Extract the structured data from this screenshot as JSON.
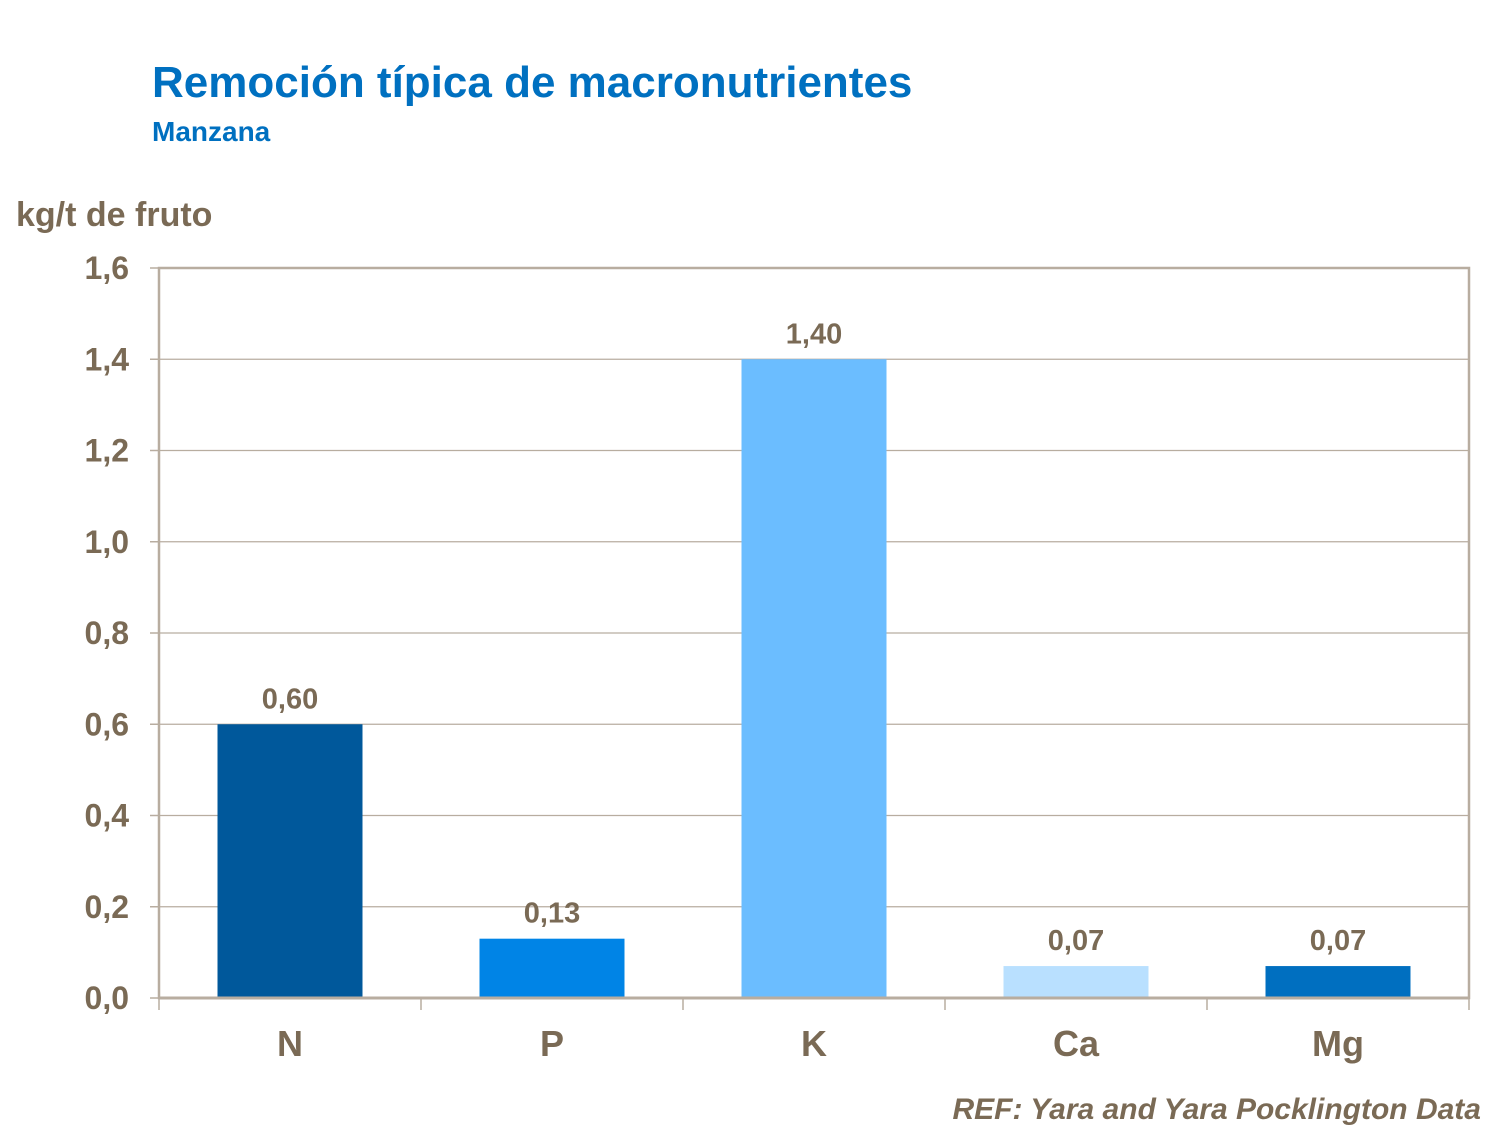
{
  "chart_data": {
    "type": "bar",
    "title": "Remoción típica de macronutrientes",
    "subtitle": "Manzana",
    "xlabel": "",
    "ylabel": "kg/t de fruto",
    "categories": [
      "N",
      "P",
      "K",
      "Ca",
      "Mg"
    ],
    "values": [
      0.6,
      0.13,
      1.4,
      0.07,
      0.07
    ],
    "data_labels": [
      "0,60",
      "0,13",
      "1,40",
      "0,07",
      "0,07"
    ],
    "colors": [
      "#00589b",
      "#0084e6",
      "#6bbdff",
      "#b9e0ff",
      "#006fc0"
    ],
    "ylim": [
      0,
      1.6
    ],
    "yticks": [
      0,
      0.2,
      0.4,
      0.6,
      0.8,
      1.0,
      1.2,
      1.4,
      1.6
    ],
    "ytick_labels": [
      "0,0",
      "0,2",
      "0,4",
      "0,6",
      "0,8",
      "1,0",
      "1,2",
      "1,4",
      "1,6"
    ],
    "grid": true,
    "legend": "none",
    "source": "REF: Yara and Yara Pocklington Data"
  }
}
